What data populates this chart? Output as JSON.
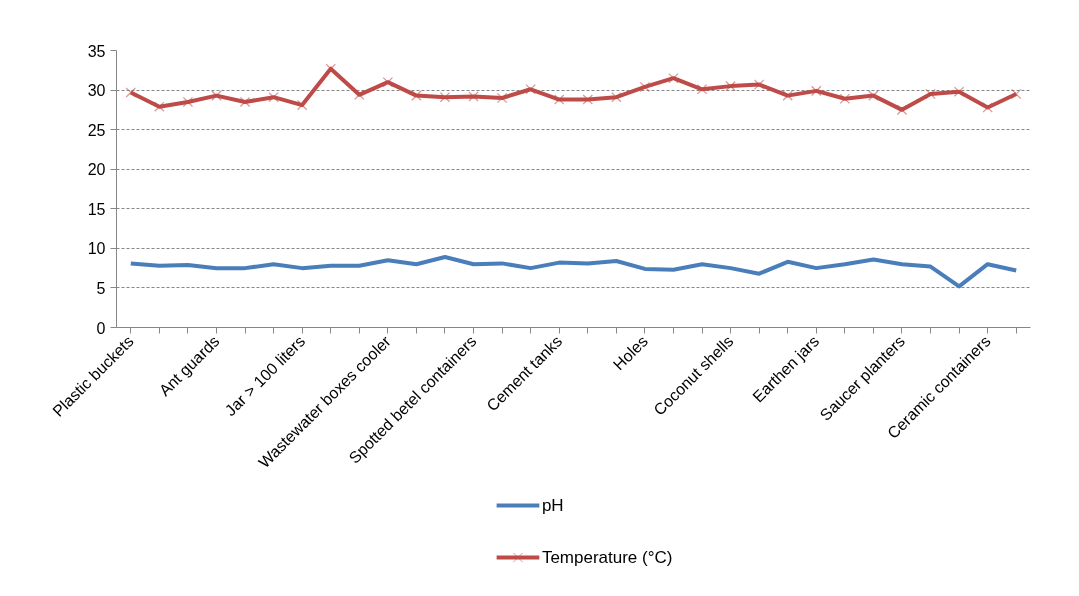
{
  "chart_data": {
    "type": "line",
    "categories": [
      "Plastic buckets",
      null,
      null,
      "Ant guards",
      null,
      null,
      "Jar > 100 liters",
      null,
      null,
      "Wastewater boxes cooler",
      null,
      null,
      "Spotted betel containers",
      null,
      null,
      "Cement tanks",
      null,
      null,
      "Holes",
      null,
      null,
      "Coconut shells",
      null,
      null,
      "Earthen jars",
      null,
      null,
      "Saucer planters",
      null,
      null,
      "Ceramic containers",
      null
    ],
    "series": [
      {
        "name": "pH",
        "color": "#4a7ebb",
        "marker": "none",
        "values": [
          8.1,
          7.8,
          7.9,
          7.5,
          7.5,
          8.0,
          7.5,
          7.8,
          7.8,
          8.5,
          8.0,
          8.9,
          8.0,
          8.1,
          7.5,
          8.2,
          8.1,
          8.4,
          7.4,
          7.3,
          8.0,
          7.5,
          6.8,
          8.3,
          7.5,
          8.0,
          8.6,
          8.0,
          7.7,
          5.2,
          8.0,
          7.2
        ]
      },
      {
        "name": "Temperature (°C)",
        "color": "#be4b48",
        "marker": "cross",
        "values": [
          29.7,
          27.9,
          28.5,
          29.3,
          28.5,
          29.1,
          28.1,
          32.7,
          29.4,
          31.0,
          29.3,
          29.1,
          29.2,
          29.0,
          30.1,
          28.8,
          28.8,
          29.1,
          30.4,
          31.5,
          30.1,
          30.5,
          30.7,
          29.3,
          29.9,
          28.9,
          29.3,
          27.5,
          29.5,
          29.8,
          27.8,
          29.5
        ]
      }
    ],
    "ylim": [
      0,
      35
    ],
    "yticks": [
      0,
      5,
      10,
      15,
      20,
      25,
      30,
      35
    ],
    "grid": "y",
    "legend": "bottom",
    "line_style": "solid"
  }
}
